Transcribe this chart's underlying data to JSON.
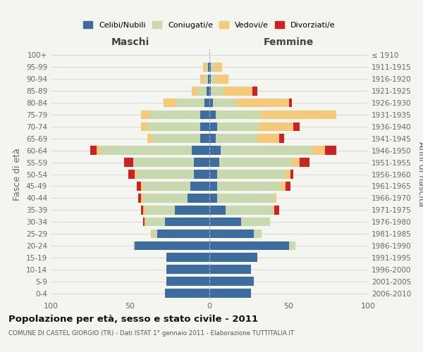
{
  "age_groups": [
    "0-4",
    "5-9",
    "10-14",
    "15-19",
    "20-24",
    "25-29",
    "30-34",
    "35-39",
    "40-44",
    "45-49",
    "50-54",
    "55-59",
    "60-64",
    "65-69",
    "70-74",
    "75-79",
    "80-84",
    "85-89",
    "90-94",
    "95-99",
    "100+"
  ],
  "birth_years": [
    "2006-2010",
    "2001-2005",
    "1996-2000",
    "1991-1995",
    "1986-1990",
    "1981-1985",
    "1976-1980",
    "1971-1975",
    "1966-1970",
    "1961-1965",
    "1956-1960",
    "1951-1955",
    "1946-1950",
    "1941-1945",
    "1936-1940",
    "1931-1935",
    "1926-1930",
    "1921-1925",
    "1916-1920",
    "1911-1915",
    "≤ 1910"
  ],
  "males_celibi": [
    28,
    27,
    27,
    27,
    47,
    33,
    28,
    22,
    14,
    12,
    10,
    10,
    11,
    6,
    6,
    6,
    3,
    2,
    1,
    1,
    0
  ],
  "males_coniugati": [
    0,
    0,
    0,
    0,
    1,
    3,
    12,
    18,
    28,
    30,
    36,
    38,
    58,
    30,
    33,
    32,
    18,
    5,
    2,
    1,
    0
  ],
  "males_vedovi": [
    0,
    0,
    0,
    0,
    0,
    1,
    1,
    2,
    1,
    1,
    1,
    0,
    2,
    3,
    4,
    5,
    8,
    4,
    3,
    2,
    0
  ],
  "males_divorziati": [
    0,
    0,
    0,
    0,
    0,
    0,
    1,
    1,
    2,
    3,
    4,
    6,
    4,
    0,
    0,
    0,
    0,
    0,
    0,
    0,
    0
  ],
  "females_celibi": [
    26,
    28,
    26,
    30,
    50,
    28,
    20,
    10,
    5,
    5,
    5,
    6,
    7,
    4,
    5,
    4,
    2,
    1,
    1,
    1,
    0
  ],
  "females_coniugate": [
    0,
    0,
    0,
    0,
    4,
    5,
    18,
    30,
    36,
    40,
    43,
    46,
    58,
    26,
    26,
    28,
    15,
    8,
    3,
    2,
    0
  ],
  "females_vedove": [
    0,
    0,
    0,
    0,
    0,
    0,
    0,
    1,
    1,
    3,
    3,
    5,
    8,
    14,
    22,
    48,
    33,
    18,
    8,
    5,
    0
  ],
  "females_divorziate": [
    0,
    0,
    0,
    0,
    0,
    0,
    0,
    3,
    0,
    3,
    2,
    6,
    7,
    3,
    4,
    0,
    2,
    3,
    0,
    0,
    0
  ],
  "color_celibi": "#3d6d9e",
  "color_coniugati": "#c8d9b0",
  "color_vedovi": "#f5c97a",
  "color_divorziati": "#cc2222",
  "title_main": "Popolazione per età, sesso e stato civile - 2011",
  "title_sub": "COMUNE DI CASTEL GIORGIO (TR) - Dati ISTAT 1° gennaio 2011 - Elaborazione TUTTITALIA.IT",
  "label_maschi": "Maschi",
  "label_femmine": "Femmine",
  "ylabel_left": "Fasce di età",
  "ylabel_right": "Anni di nascita",
  "legend_labels": [
    "Celibi/Nubili",
    "Coniugati/e",
    "Vedovi/e",
    "Divorziati/e"
  ],
  "xlim": 100,
  "background_color": "#f5f5f0"
}
